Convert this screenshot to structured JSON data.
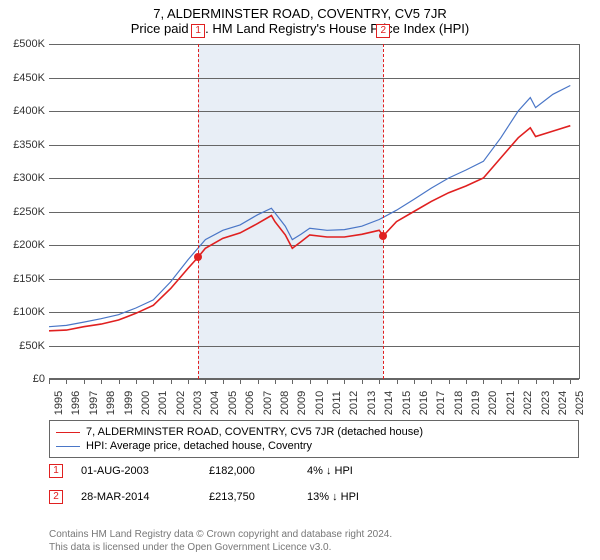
{
  "title_line1": "7, ALDERMINSTER ROAD, COVENTRY, CV5 7JR",
  "title_line2": "Price paid vs. HM Land Registry's House Price Index (HPI)",
  "chart": {
    "type": "line",
    "plot_background": "#ffffff",
    "shade_color": "#e8eef6",
    "grid_color": "#666666",
    "dash_color": "#e02020",
    "x_start_year": 1995,
    "x_end_year": 2025.5,
    "years": [
      1995,
      1996,
      1997,
      1998,
      1999,
      2000,
      2001,
      2002,
      2003,
      2004,
      2005,
      2006,
      2007,
      2008,
      2009,
      2010,
      2011,
      2012,
      2013,
      2014,
      2015,
      2016,
      2017,
      2018,
      2019,
      2020,
      2021,
      2022,
      2023,
      2024,
      2025
    ],
    "y_min": 0,
    "y_max": 500000,
    "y_step": 50000,
    "y_labels": [
      "£0",
      "£50K",
      "£100K",
      "£150K",
      "£200K",
      "£250K",
      "£300K",
      "£350K",
      "£400K",
      "£450K",
      "£500K"
    ],
    "shade_from_year": 2003.58,
    "shade_to_year": 2014.24,
    "series": [
      {
        "name": "7, ALDERMINSTER ROAD, COVENTRY, CV5 7JR (detached house)",
        "color": "#e02020",
        "stroke_width": 1.6,
        "data": [
          [
            1995,
            72000
          ],
          [
            1996,
            73000
          ],
          [
            1997,
            78000
          ],
          [
            1998,
            82000
          ],
          [
            1999,
            88000
          ],
          [
            2000,
            98000
          ],
          [
            2001,
            110000
          ],
          [
            2002,
            135000
          ],
          [
            2003,
            165000
          ],
          [
            2003.58,
            182000
          ],
          [
            2004,
            195000
          ],
          [
            2005,
            210000
          ],
          [
            2006,
            218000
          ],
          [
            2007,
            232000
          ],
          [
            2007.8,
            244000
          ],
          [
            2008,
            235000
          ],
          [
            2008.6,
            215000
          ],
          [
            2009,
            195000
          ],
          [
            2009.5,
            205000
          ],
          [
            2010,
            215000
          ],
          [
            2011,
            212000
          ],
          [
            2012,
            212000
          ],
          [
            2013,
            216000
          ],
          [
            2014,
            222000
          ],
          [
            2014.24,
            213750
          ],
          [
            2015,
            235000
          ],
          [
            2016,
            250000
          ],
          [
            2017,
            265000
          ],
          [
            2018,
            278000
          ],
          [
            2019,
            288000
          ],
          [
            2020,
            300000
          ],
          [
            2021,
            330000
          ],
          [
            2022,
            360000
          ],
          [
            2022.7,
            375000
          ],
          [
            2023,
            362000
          ],
          [
            2024,
            370000
          ],
          [
            2025,
            378000
          ]
        ]
      },
      {
        "name": "HPI: Average price, detached house, Coventry",
        "color": "#4a76c7",
        "stroke_width": 1.2,
        "data": [
          [
            1995,
            78000
          ],
          [
            1996,
            80000
          ],
          [
            1997,
            85000
          ],
          [
            1998,
            90000
          ],
          [
            1999,
            96000
          ],
          [
            2000,
            106000
          ],
          [
            2001,
            118000
          ],
          [
            2002,
            145000
          ],
          [
            2003,
            178000
          ],
          [
            2004,
            208000
          ],
          [
            2005,
            222000
          ],
          [
            2006,
            230000
          ],
          [
            2007,
            245000
          ],
          [
            2007.8,
            255000
          ],
          [
            2008,
            248000
          ],
          [
            2008.6,
            228000
          ],
          [
            2009,
            208000
          ],
          [
            2009.5,
            216000
          ],
          [
            2010,
            225000
          ],
          [
            2011,
            222000
          ],
          [
            2012,
            223000
          ],
          [
            2013,
            228000
          ],
          [
            2014,
            238000
          ],
          [
            2015,
            252000
          ],
          [
            2016,
            268000
          ],
          [
            2017,
            285000
          ],
          [
            2018,
            300000
          ],
          [
            2019,
            312000
          ],
          [
            2020,
            325000
          ],
          [
            2021,
            360000
          ],
          [
            2022,
            400000
          ],
          [
            2022.7,
            420000
          ],
          [
            2023,
            405000
          ],
          [
            2024,
            425000
          ],
          [
            2025,
            438000
          ]
        ]
      }
    ],
    "markers": [
      {
        "label": "1",
        "year": 2003.58,
        "value": 182000
      },
      {
        "label": "2",
        "year": 2014.24,
        "value": 213750
      }
    ]
  },
  "legend": {
    "items": [
      {
        "text": "7, ALDERMINSTER ROAD, COVENTRY, CV5 7JR (detached house)",
        "color": "#e02020",
        "stroke_width": 1.6
      },
      {
        "text": "HPI: Average price, detached house, Coventry",
        "color": "#4a76c7",
        "stroke_width": 1.2
      }
    ]
  },
  "sales": [
    {
      "label": "1",
      "date": "01-AUG-2003",
      "price": "£182,000",
      "diff": "4% ↓ HPI"
    },
    {
      "label": "2",
      "date": "28-MAR-2014",
      "price": "£213,750",
      "diff": "13% ↓ HPI"
    }
  ],
  "attribution": {
    "line1": "Contains HM Land Registry data © Crown copyright and database right 2024.",
    "line2": "This data is licensed under the Open Government Licence v3.0."
  }
}
